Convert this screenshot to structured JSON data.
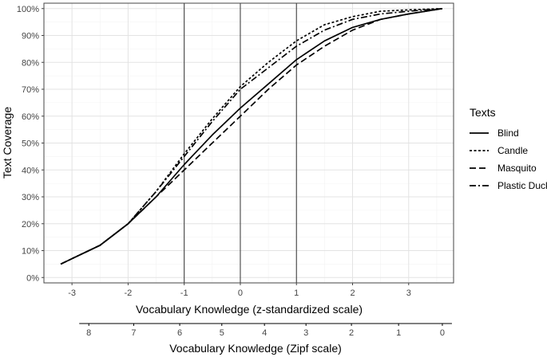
{
  "chart_data": {
    "type": "line",
    "ylabel": "Text Coverage",
    "xlabel": "Vocabulary Knowledge (z-standardized scale)",
    "x2label": "Vocabulary Knowledge (Zipf scale)",
    "xlim": [
      -3.5,
      3.8
    ],
    "ylim": [
      -0.02,
      1.02
    ],
    "x_ticks": [
      -3,
      -2,
      -1,
      0,
      1,
      2,
      3
    ],
    "x_tick_labels": [
      "-3",
      "-2",
      "-1",
      "0",
      "1",
      "2",
      "3"
    ],
    "y_ticks": [
      0,
      0.1,
      0.2,
      0.3,
      0.4,
      0.5,
      0.6,
      0.7,
      0.8,
      0.9,
      1.0
    ],
    "y_tick_labels": [
      "0%",
      "10%",
      "20%",
      "30%",
      "40%",
      "50%",
      "60%",
      "70%",
      "80%",
      "90%",
      "100%"
    ],
    "zipf_ticks": [
      {
        "z": -2.7,
        "label": "8"
      },
      {
        "z": -1.9,
        "label": "7"
      },
      {
        "z": -1.08,
        "label": "6"
      },
      {
        "z": -0.33,
        "label": "5"
      },
      {
        "z": 0.43,
        "label": "4"
      },
      {
        "z": 1.17,
        "label": "3"
      },
      {
        "z": 1.98,
        "label": "2"
      },
      {
        "z": 2.82,
        "label": "1"
      },
      {
        "z": 3.6,
        "label": "0"
      }
    ],
    "vlines": [
      -1,
      0,
      1
    ],
    "grid": true,
    "legend": {
      "title": "Texts",
      "position": "right"
    },
    "series": [
      {
        "name": "Blind",
        "dash": "solid",
        "x": [
          -3.2,
          -3.0,
          -2.5,
          -2.0,
          -1.5,
          -1.0,
          -0.5,
          0.0,
          0.5,
          1.0,
          1.5,
          2.0,
          2.5,
          3.0,
          3.6
        ],
        "y": [
          0.05,
          0.07,
          0.12,
          0.2,
          0.3,
          0.42,
          0.53,
          0.63,
          0.72,
          0.81,
          0.88,
          0.93,
          0.96,
          0.98,
          1.0
        ]
      },
      {
        "name": "Candle",
        "dash": "dotted",
        "x": [
          -3.2,
          -3.0,
          -2.5,
          -2.0,
          -1.5,
          -1.0,
          -0.5,
          0.0,
          0.5,
          1.0,
          1.5,
          2.0,
          2.5,
          3.0,
          3.6
        ],
        "y": [
          0.05,
          0.07,
          0.12,
          0.2,
          0.32,
          0.46,
          0.59,
          0.71,
          0.8,
          0.88,
          0.94,
          0.97,
          0.99,
          0.995,
          1.0
        ]
      },
      {
        "name": "Masquito",
        "dash": "dashed",
        "x": [
          -3.2,
          -3.0,
          -2.5,
          -2.0,
          -1.5,
          -1.0,
          -0.5,
          0.0,
          0.5,
          1.0,
          1.5,
          2.0,
          2.5,
          3.0,
          3.6
        ],
        "y": [
          0.05,
          0.07,
          0.12,
          0.2,
          0.3,
          0.4,
          0.5,
          0.6,
          0.7,
          0.79,
          0.86,
          0.92,
          0.96,
          0.98,
          1.0
        ]
      },
      {
        "name": "Plastic Duck",
        "dash": "dashdot",
        "x": [
          -3.2,
          -3.0,
          -2.5,
          -2.0,
          -1.5,
          -1.0,
          -0.5,
          0.0,
          0.5,
          1.0,
          1.5,
          2.0,
          2.5,
          3.0,
          3.6
        ],
        "y": [
          0.05,
          0.07,
          0.12,
          0.2,
          0.32,
          0.45,
          0.58,
          0.7,
          0.78,
          0.86,
          0.92,
          0.96,
          0.98,
          0.99,
          1.0
        ]
      }
    ]
  }
}
